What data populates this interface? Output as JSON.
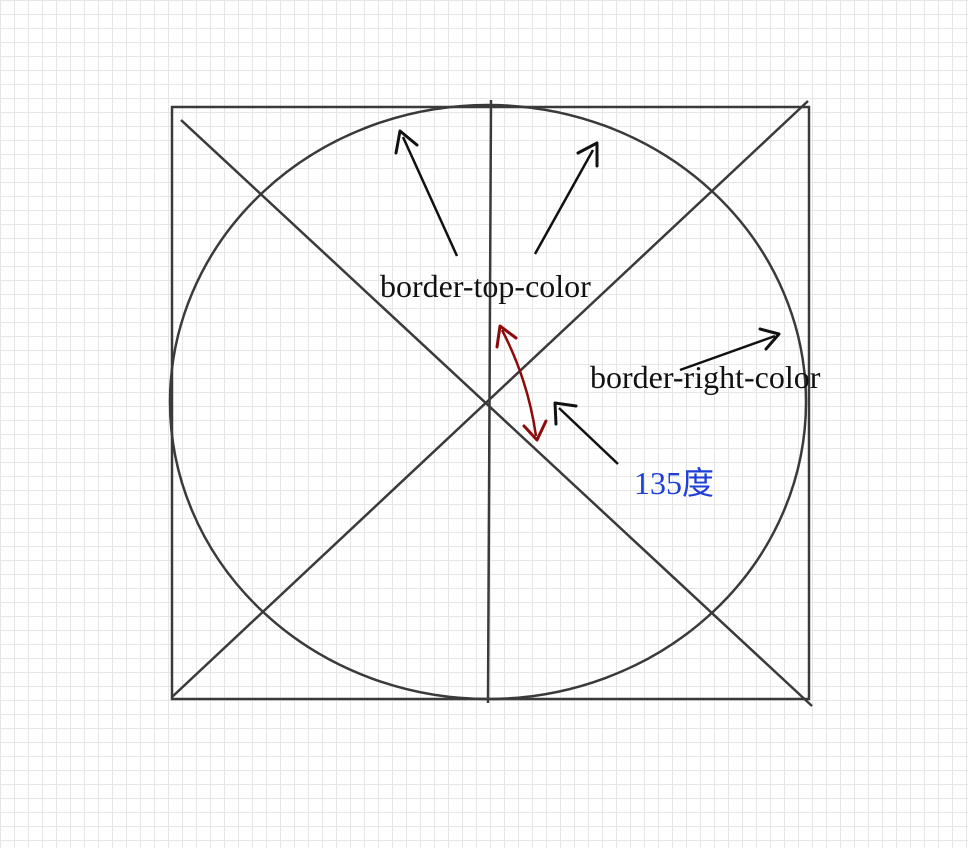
{
  "labels": {
    "border_top_color": "border-top-color",
    "border_right_color": "border-right-color",
    "angle": "135度"
  },
  "colors": {
    "stroke": "#3a3a3a",
    "arrow": "#111111",
    "angle_arrow": "#8b0a0a",
    "angle_text": "#1d3fd8",
    "grid": "#e6e6e6"
  }
}
